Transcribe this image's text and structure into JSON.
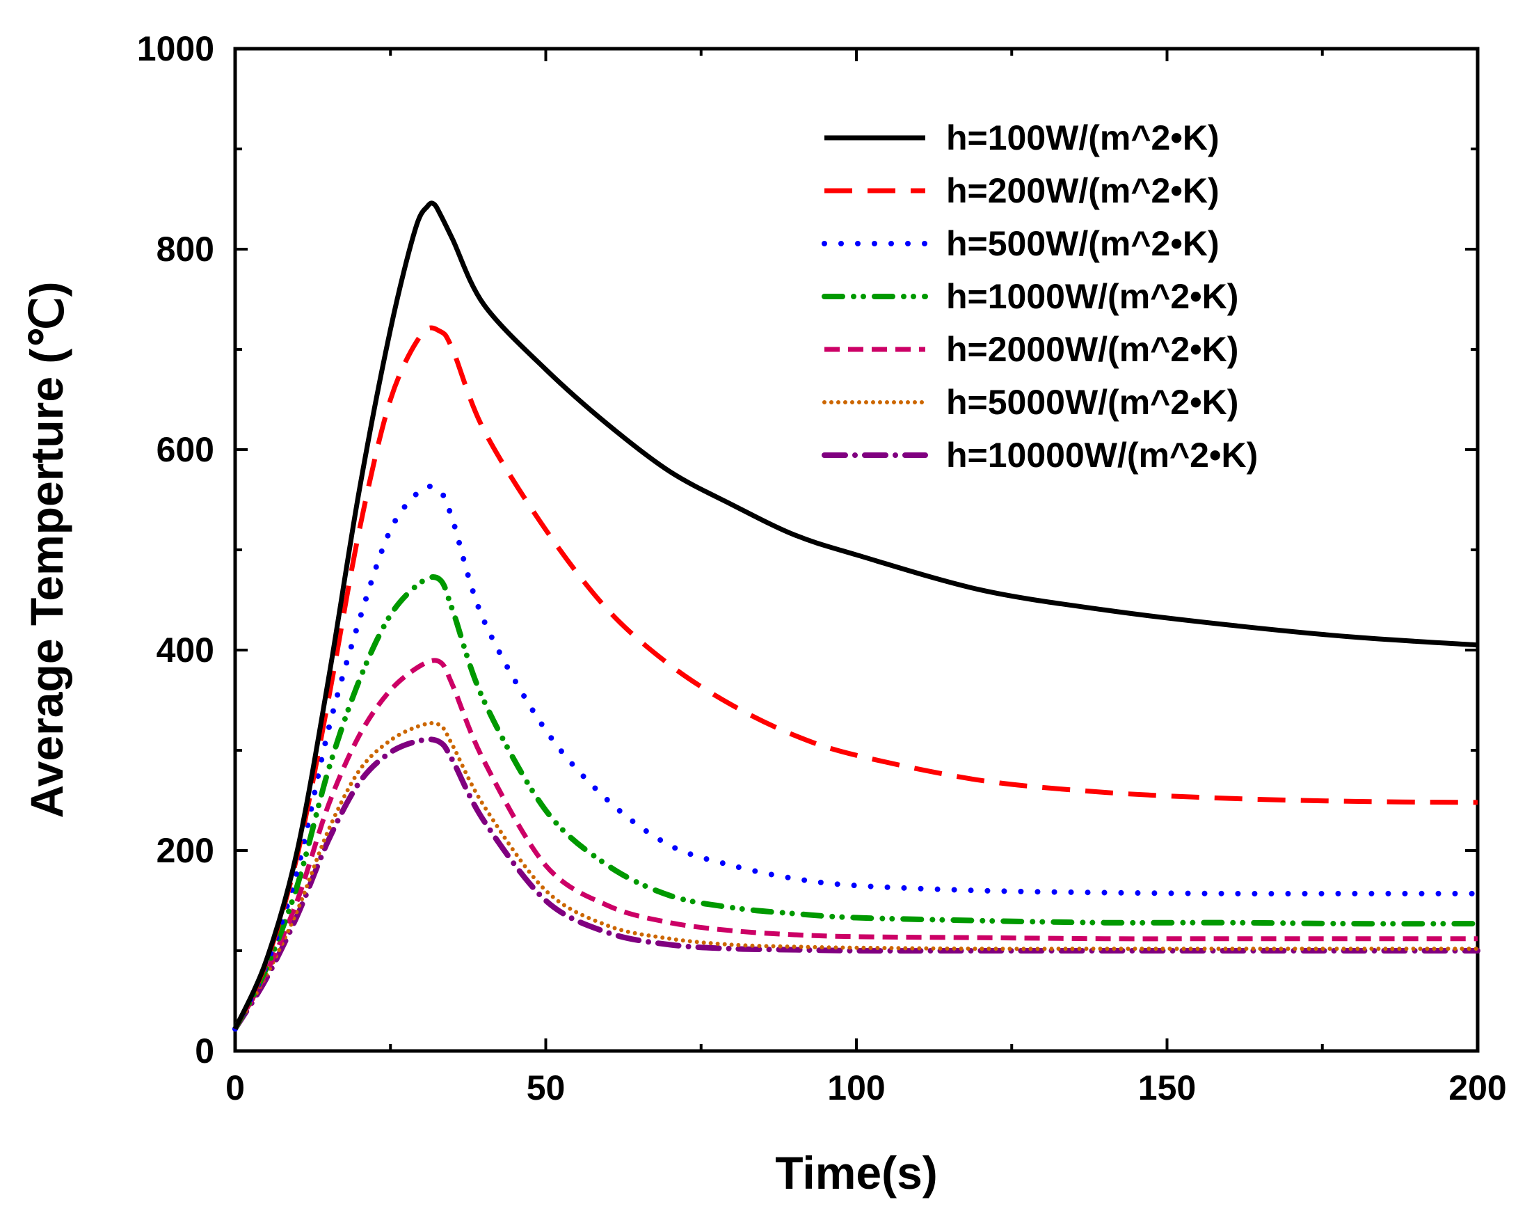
{
  "chart_data": {
    "type": "line",
    "title": "",
    "xlabel": "Time(s)",
    "ylabel": "Average Temperture (℃)",
    "xlim": [
      0,
      200
    ],
    "ylim": [
      0,
      1000
    ],
    "xticks": [
      0,
      50,
      100,
      150,
      200
    ],
    "yticks": [
      0,
      200,
      400,
      600,
      800,
      1000
    ],
    "xtick_labels": [
      "0",
      "50",
      "100",
      "150",
      "200"
    ],
    "ytick_labels": [
      "0",
      "200",
      "400",
      "600",
      "800",
      "1000"
    ],
    "grid": false,
    "legend_position": "top-right",
    "series": [
      {
        "name": "h=100W/(m^2•K)",
        "color": "#000000",
        "dash": "solid",
        "x": [
          0,
          5,
          10,
          15,
          20,
          25,
          29,
          31,
          32,
          33,
          35,
          40,
          50,
          60,
          70,
          80,
          90,
          100,
          120,
          140,
          160,
          180,
          200
        ],
        "y": [
          22,
          90,
          200,
          370,
          560,
          720,
          820,
          843,
          845,
          835,
          810,
          745,
          680,
          625,
          578,
          545,
          515,
          495,
          460,
          440,
          425,
          413,
          405
        ]
      },
      {
        "name": "h=200W/(m^2•K)",
        "color": "#ff0000",
        "dash": "long-dash",
        "x": [
          0,
          5,
          10,
          15,
          20,
          25,
          30,
          33,
          35,
          40,
          50,
          60,
          70,
          80,
          90,
          100,
          120,
          140,
          160,
          180,
          200
        ],
        "y": [
          22,
          88,
          195,
          350,
          520,
          650,
          715,
          718,
          700,
          620,
          520,
          440,
          385,
          345,
          315,
          295,
          270,
          258,
          252,
          249,
          248
        ]
      },
      {
        "name": "h=500W/(m^2•K)",
        "color": "#0000ff",
        "dash": "dot",
        "x": [
          0,
          5,
          10,
          15,
          20,
          25,
          30,
          33,
          35,
          40,
          50,
          60,
          70,
          80,
          90,
          100,
          120,
          140,
          160,
          180,
          200
        ],
        "y": [
          22,
          85,
          180,
          320,
          430,
          520,
          560,
          558,
          530,
          430,
          320,
          250,
          205,
          185,
          172,
          165,
          160,
          158,
          157,
          157,
          157
        ]
      },
      {
        "name": "h=1000W/(m^2•K)",
        "color": "#009900",
        "dash": "dash-dot-dot",
        "x": [
          0,
          5,
          10,
          15,
          20,
          25,
          30,
          33,
          35,
          40,
          50,
          60,
          70,
          80,
          90,
          100,
          120,
          140,
          160,
          180,
          200
        ],
        "y": [
          22,
          82,
          165,
          280,
          370,
          435,
          468,
          470,
          440,
          350,
          240,
          185,
          155,
          143,
          137,
          133,
          130,
          128,
          128,
          127,
          127
        ]
      },
      {
        "name": "h=2000W/(m^2•K)",
        "color": "#cc0066",
        "dash": "short-dash",
        "x": [
          0,
          5,
          10,
          15,
          20,
          25,
          30,
          33,
          35,
          40,
          50,
          60,
          70,
          80,
          90,
          100,
          120,
          140,
          160,
          180,
          200
        ],
        "y": [
          22,
          78,
          150,
          245,
          315,
          360,
          385,
          388,
          365,
          290,
          185,
          145,
          128,
          120,
          116,
          114,
          113,
          112,
          112,
          112,
          112
        ]
      },
      {
        "name": "h=5000W/(m^2•K)",
        "color": "#cc6600",
        "dash": "fine-dot",
        "x": [
          0,
          5,
          10,
          15,
          20,
          25,
          30,
          33,
          35,
          40,
          50,
          60,
          70,
          80,
          90,
          100,
          120,
          140,
          160,
          180,
          200
        ],
        "y": [
          22,
          75,
          140,
          220,
          280,
          310,
          325,
          325,
          305,
          245,
          160,
          125,
          112,
          106,
          104,
          103,
          102,
          102,
          102,
          102,
          102
        ]
      },
      {
        "name": "h=10000W/(m^2•K)",
        "color": "#800080",
        "dash": "dash-dot",
        "x": [
          0,
          5,
          10,
          15,
          20,
          25,
          30,
          33,
          35,
          40,
          50,
          60,
          70,
          80,
          90,
          100,
          120,
          140,
          160,
          180,
          200
        ],
        "y": [
          22,
          72,
          135,
          210,
          268,
          298,
          310,
          308,
          290,
          230,
          150,
          118,
          106,
          102,
          101,
          100,
          100,
          100,
          100,
          100,
          100
        ]
      }
    ]
  }
}
